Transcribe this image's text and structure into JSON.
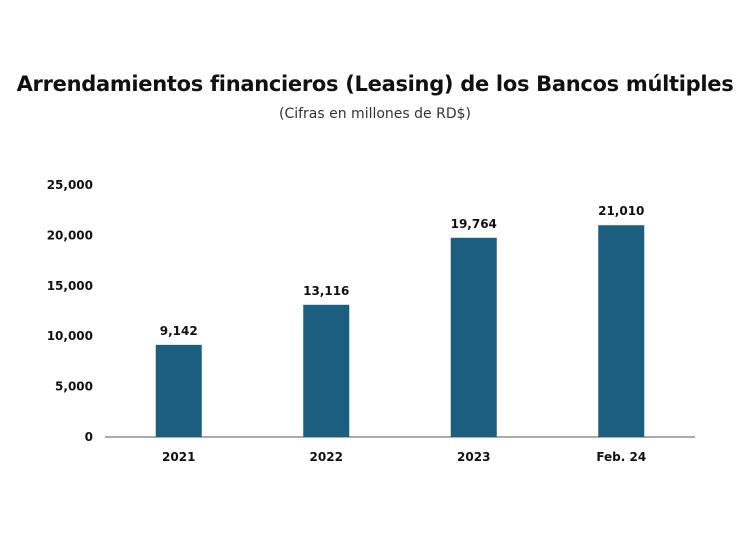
{
  "chart_data": {
    "type": "bar",
    "title": "Arrendamientos financieros (Leasing) de los Bancos múltiples",
    "subtitle": "(Cifras en millones de RD$)",
    "categories": [
      "2021",
      "2022",
      "2023",
      "Feb. 24"
    ],
    "values": [
      9142,
      13116,
      19764,
      21010
    ],
    "data_labels": [
      "9,142",
      "13,116",
      "19,764",
      "21,010"
    ],
    "ylim": [
      0,
      25000
    ],
    "yticks": [
      0,
      5000,
      10000,
      15000,
      20000,
      25000
    ],
    "ytick_labels": [
      "0",
      "5,000",
      "10,000",
      "15,000",
      "20,000",
      "25,000"
    ],
    "xlabel": "",
    "ylabel": "",
    "grid": false,
    "bar_color": "#1b5e80",
    "axis_color": "#555555"
  }
}
